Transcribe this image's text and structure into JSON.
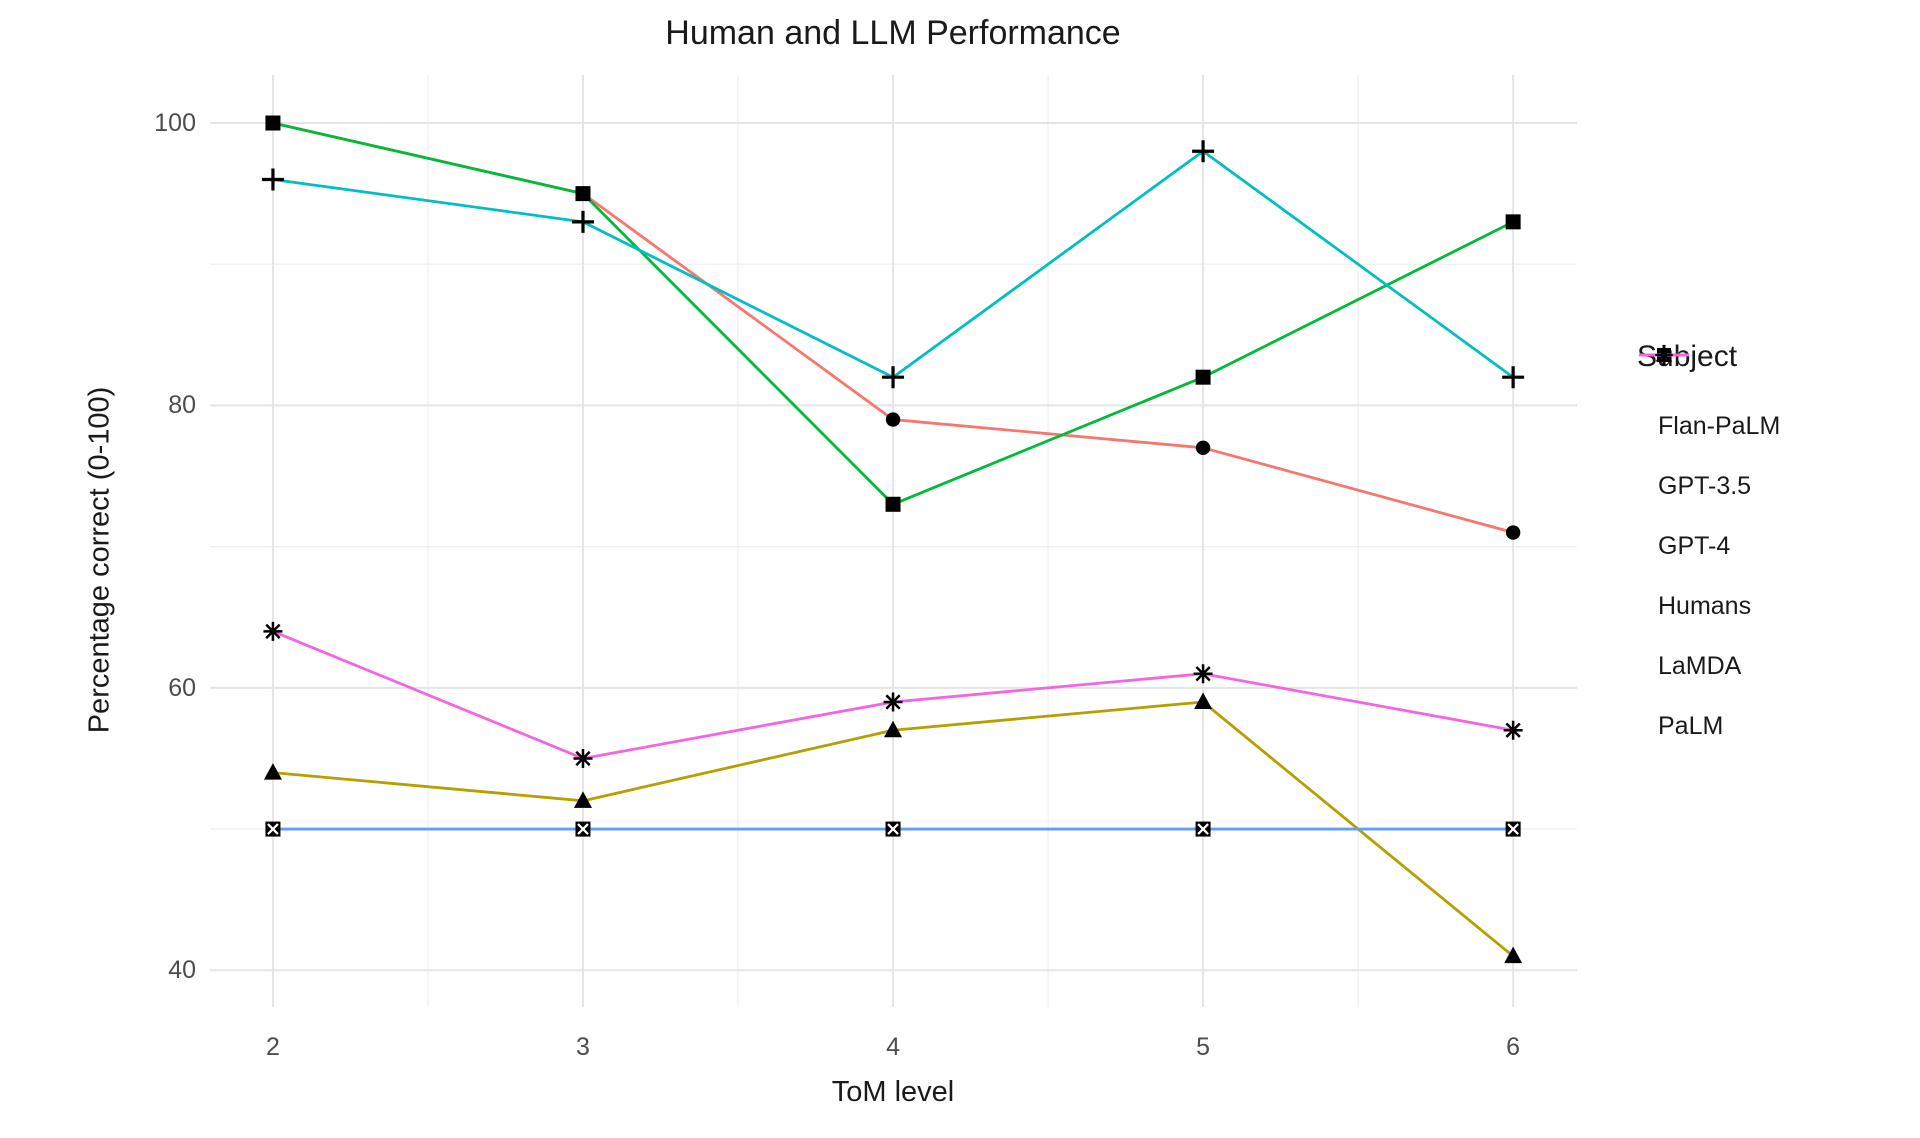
{
  "chart_data": {
    "type": "line",
    "title": "Human and LLM Performance",
    "xlabel": "ToM level",
    "ylabel": "Percentage correct (0-100)",
    "legend_title": "Subject",
    "legend_position": "right",
    "grid": true,
    "background": "#ffffff",
    "grid_major_color": "#e5e5e5",
    "grid_minor_color": "#efefef",
    "marker_color": "#000000",
    "axis_text_color": "#4d4d4d",
    "x": [
      2,
      3,
      4,
      5,
      6
    ],
    "x_ticks": [
      "2",
      "3",
      "4",
      "5",
      "6"
    ],
    "y_ticks": [
      "40",
      "60",
      "80",
      "100"
    ],
    "y_tick_values": [
      40,
      60,
      80,
      100
    ],
    "y_minor_values": [
      50,
      70,
      90
    ],
    "x_minor_values": [
      2.5,
      3.5,
      4.5,
      5.5
    ],
    "xlim": [
      1.797,
      6.206
    ],
    "ylim": [
      37.4,
      103.4
    ],
    "series": [
      {
        "name": "Flan-PaLM",
        "color": "#F8766D",
        "marker": "circle",
        "values": [
          100,
          95,
          79,
          77,
          71
        ]
      },
      {
        "name": "GPT-3.5",
        "color": "#B79F00",
        "marker": "triangle",
        "values": [
          54,
          52,
          57,
          59,
          41
        ]
      },
      {
        "name": "GPT-4",
        "color": "#00BA38",
        "marker": "square",
        "values": [
          100,
          95,
          73,
          82,
          93
        ]
      },
      {
        "name": "Humans",
        "color": "#00BFC4",
        "marker": "plus",
        "values": [
          96,
          93,
          82,
          98,
          82
        ]
      },
      {
        "name": "LaMDA",
        "color": "#619CFF",
        "marker": "square-cross",
        "values": [
          50,
          50,
          50,
          50,
          50
        ]
      },
      {
        "name": "PaLM",
        "color": "#F564E3",
        "marker": "asterisk",
        "values": [
          64,
          55,
          59,
          61,
          57
        ]
      }
    ]
  }
}
